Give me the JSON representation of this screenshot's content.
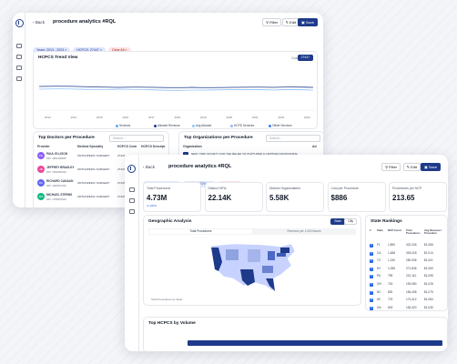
{
  "back_label": "Back",
  "page_title": "procedure analytics #RQL",
  "toolbar": {
    "filter": "Filter",
    "edit": "Edit",
    "save": "Save"
  },
  "filters": {
    "years": "Years: 2013 - 2023",
    "hcpcs": "HCPCS: 27447",
    "clear": "Clear All"
  },
  "trend": {
    "title": "HCPCS Trend View",
    "code_label": "Code",
    "code_value": "27447",
    "x_ticks": [
      "2013",
      "2014",
      "2015",
      "2016",
      "2017",
      "2018",
      "2019",
      "2020",
      "2021",
      "2022",
      "2023"
    ],
    "legend": [
      "Services",
      "Allowed Revenue",
      "Avg Allowed",
      "HCPD Services",
      "Offset Services"
    ]
  },
  "doctors": {
    "title": "Top Doctors per Procedure",
    "search": "Search...",
    "headers": [
      "Provider",
      "Medical Specialty",
      "HCPCS Code",
      "HCPCS Descript"
    ],
    "rows": [
      {
        "initials": "PE",
        "name": "PAUL ELLISON",
        "npi": "NPI: 1861430825",
        "spec": "ORTHOPEDIC SURGERY",
        "code": "27447",
        "desc": "Repair of knee jo"
      },
      {
        "initials": "JB",
        "name": "JEFFREY BRADLEY",
        "npi": "NPI: 1952350015",
        "spec": "ORTHOPEDIC SURGERY",
        "code": "27447",
        "desc": "Repair of knee jo"
      },
      {
        "initials": "RC",
        "name": "RICHARD CANAAN",
        "npi": "NPI: 1063527019",
        "spec": "ORTHOPEDIC SURGERY",
        "code": "27447",
        "desc": "Repair of knee jo"
      },
      {
        "initials": "MS",
        "name": "MICHAEL STERNS",
        "npi": "NPI: 1780615640",
        "spec": "ORTHOPEDIC SURGERY",
        "code": "27447",
        "desc": "Repair of knee jo"
      }
    ]
  },
  "orgs": {
    "title": "Top Organizations per Procedure",
    "search": "Search...",
    "header": "Organization",
    "header2": "Ad",
    "row_name": "NEW YORK SOCIETY FOR THE RELIEF OF RUPTURED & CRIPPLED MAINTAINING",
    "row_loc": "NEW YORK, NY"
  },
  "stats": [
    {
      "label": "Total Procedures",
      "value": "4.73M",
      "sub": "of 100%"
    },
    {
      "label": "Distinct NPIs",
      "value": "22.14K",
      "sub": ""
    },
    {
      "label": "Distinct Organizations",
      "value": "5.58K",
      "sub": ""
    },
    {
      "label": "Cost per Procedure",
      "value": "$886",
      "sub": ""
    },
    {
      "label": "Procedures per NCP",
      "value": "213.65",
      "sub": ""
    }
  ],
  "geo": {
    "title": "Geographic Analysis",
    "toggle": [
      "State",
      "City"
    ],
    "tabs": [
      "Total Procedures",
      "Revenue per 1,000 Bones"
    ],
    "caption": "Total Procedures by State"
  },
  "rankings": {
    "title": "State Rankings",
    "headers": [
      "#",
      "State",
      "NCP Count",
      "Total Procedures",
      "Avg Revenue / Procedure"
    ],
    "rows": [
      [
        "1",
        "FL",
        "1,890",
        "322,026",
        "$1,066"
      ],
      [
        "2",
        "CA",
        "1,488",
        "318,418",
        "$1,014"
      ],
      [
        "3",
        "TX",
        "1,240",
        "280,936",
        "$1,001"
      ],
      [
        "4",
        "NY",
        "1,096",
        "271,836",
        "$1,060"
      ],
      [
        "5",
        "PA",
        "799",
        "222,110",
        "$1,095"
      ],
      [
        "6",
        "OH",
        "743",
        "193,080",
        "$1,028"
      ],
      [
        "7",
        "NC",
        "830",
        "184,408",
        "$1,075"
      ],
      [
        "8",
        "MI",
        "776",
        "173,412",
        "$1,084"
      ],
      [
        "9",
        "GA",
        "643",
        "163,420",
        "$1,030"
      ]
    ]
  },
  "hcpcs_volume": {
    "title": "Top HCPCS by Volume"
  },
  "colors": {
    "accent": "#1e3a8a",
    "line": "#2563eb",
    "map_dark": "#1e3a8a",
    "map_light": "#c7d2fe"
  },
  "icons": [
    "logo-icon",
    "home-icon",
    "grid-icon",
    "chart-icon",
    "document-icon",
    "filter-icon",
    "edit-icon",
    "save-icon",
    "search-icon"
  ]
}
